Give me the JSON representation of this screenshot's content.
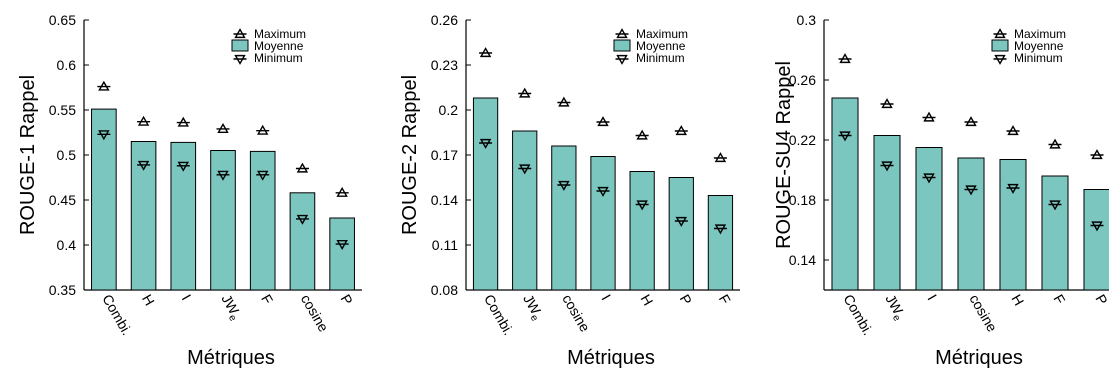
{
  "colors": {
    "bar_fill": "#7cc6c0",
    "bar_stroke": "#000000",
    "marker": "#000000"
  },
  "legend": {
    "maximum": "Maximum",
    "moyenne": "Moyenne",
    "minimum": "Minimum",
    "placement": "top-right"
  },
  "chart_data": [
    {
      "type": "bar",
      "ylabel": "ROUGE-1 Rappel",
      "xlabel": "Métriques",
      "ylim": [
        0.35,
        0.65
      ],
      "yticks": [
        "0.35",
        "0.4",
        "0.45",
        "0.5",
        "0.55",
        "0.6",
        "0.65"
      ],
      "categories": [
        "Combi.",
        "H",
        "I",
        "JWe",
        "F",
        "cosine",
        "P"
      ],
      "series": [
        {
          "name": "Moyenne",
          "values": [
            0.551,
            0.515,
            0.514,
            0.505,
            0.504,
            0.458,
            0.43
          ]
        },
        {
          "name": "Maximum",
          "values": [
            0.576,
            0.537,
            0.536,
            0.529,
            0.527,
            0.485,
            0.458
          ]
        },
        {
          "name": "Minimum",
          "values": [
            0.523,
            0.489,
            0.488,
            0.478,
            0.478,
            0.429,
            0.401
          ]
        }
      ]
    },
    {
      "type": "bar",
      "ylabel": "ROUGE-2 Rappel",
      "xlabel": "Métriques",
      "ylim": [
        0.08,
        0.26
      ],
      "yticks": [
        "0.08",
        "0.11",
        "0.14",
        "0.17",
        "0.2",
        "0.23",
        "0.26"
      ],
      "categories": [
        "Combi.",
        "JWe",
        "cosine",
        "I",
        "H",
        "P",
        "F"
      ],
      "series": [
        {
          "name": "Moyenne",
          "values": [
            0.208,
            0.186,
            0.176,
            0.169,
            0.159,
            0.155,
            0.143
          ]
        },
        {
          "name": "Maximum",
          "values": [
            0.238,
            0.211,
            0.205,
            0.192,
            0.183,
            0.186,
            0.168
          ]
        },
        {
          "name": "Minimum",
          "values": [
            0.178,
            0.161,
            0.15,
            0.146,
            0.137,
            0.126,
            0.121
          ]
        }
      ]
    },
    {
      "type": "bar",
      "ylabel": "ROUGE-SU4 Rappel",
      "xlabel": "Métriques",
      "ylim": [
        0.12,
        0.3
      ],
      "yticks": [
        "0.14",
        "0.18",
        "0.22",
        "0.26",
        "0.3"
      ],
      "categories": [
        "Combi.",
        "JWe",
        "I",
        "cosine",
        "H",
        "F",
        "P"
      ],
      "series": [
        {
          "name": "Moyenne",
          "values": [
            0.248,
            0.223,
            0.215,
            0.208,
            0.207,
            0.196,
            0.187
          ]
        },
        {
          "name": "Maximum",
          "values": [
            0.274,
            0.244,
            0.235,
            0.232,
            0.226,
            0.217,
            0.21
          ]
        },
        {
          "name": "Minimum",
          "values": [
            0.223,
            0.203,
            0.195,
            0.187,
            0.188,
            0.177,
            0.163
          ]
        }
      ]
    }
  ]
}
